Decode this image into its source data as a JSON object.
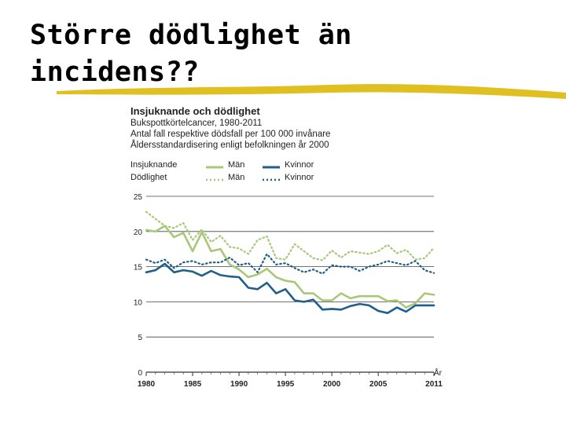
{
  "slide": {
    "title_line1": "Större dödlighet än",
    "title_line2": "incidens??",
    "underline_color": "#e0c020"
  },
  "chart_data": {
    "type": "line",
    "title": "Insjuknande och dödlighet",
    "subtitle": "Bukspottkörtelcancer, 1980-2011",
    "note1": "Antal fall respektive dödsfall per 100 000 invånare",
    "note2": "Åldersstandardisering enligt befolkningen år 2000",
    "legend": {
      "incidence_label": "Insjuknande",
      "mortality_label": "Dödlighet",
      "men": "Män",
      "women": "Kvinnor"
    },
    "xlabel": "År",
    "ylabel": "",
    "xlim": [
      1980,
      2011
    ],
    "ylim": [
      0,
      25
    ],
    "yticks": [
      0,
      5,
      10,
      15,
      20,
      25
    ],
    "xticks": [
      1980,
      1985,
      1990,
      1995,
      2000,
      2005,
      2011
    ],
    "grid": true,
    "x": [
      1980,
      1981,
      1982,
      1983,
      1984,
      1985,
      1986,
      1987,
      1988,
      1989,
      1990,
      1991,
      1992,
      1993,
      1994,
      1995,
      1996,
      1997,
      1998,
      1999,
      2000,
      2001,
      2002,
      2003,
      2004,
      2005,
      2006,
      2007,
      2008,
      2009,
      2010,
      2011
    ],
    "series": [
      {
        "name": "Män",
        "kind": "incidence",
        "color": "#a8c878",
        "dash": false,
        "values": [
          20.2,
          20.0,
          20.8,
          19.2,
          19.8,
          17.2,
          19.9,
          17.2,
          17.5,
          15.3,
          14.6,
          13.5,
          13.9,
          14.7,
          13.5,
          13.0,
          12.8,
          11.2,
          11.2,
          10.2,
          10.2,
          11.2,
          10.5,
          10.8,
          10.8,
          10.8,
          10.1,
          10.2,
          9.2,
          9.8,
          11.2,
          11.0
        ]
      },
      {
        "name": "Kvinnor",
        "kind": "incidence",
        "color": "#1f5f8b",
        "dash": false,
        "values": [
          14.2,
          14.5,
          15.4,
          14.2,
          14.5,
          14.3,
          13.7,
          14.4,
          13.8,
          13.6,
          13.5,
          12.0,
          11.8,
          12.7,
          11.2,
          11.8,
          10.2,
          10.0,
          10.3,
          8.9,
          9.0,
          8.9,
          9.4,
          9.7,
          9.5,
          8.7,
          8.4,
          9.2,
          8.6,
          9.5,
          9.5,
          9.5
        ]
      },
      {
        "name": "Män",
        "kind": "mortality",
        "color": "#a8c878",
        "dash": true,
        "values": [
          22.8,
          21.8,
          20.8,
          20.5,
          21.2,
          18.8,
          20.3,
          18.5,
          19.4,
          17.8,
          17.6,
          16.8,
          18.8,
          19.3,
          16.2,
          16.0,
          18.2,
          17.2,
          16.2,
          15.9,
          17.3,
          16.3,
          17.2,
          17.0,
          16.8,
          17.2,
          18.1,
          16.9,
          17.4,
          16.0,
          16.2,
          17.7
        ]
      },
      {
        "name": "Kvinnor",
        "kind": "mortality",
        "color": "#1f5f8b",
        "dash": true,
        "values": [
          16.0,
          15.5,
          16.0,
          14.8,
          15.6,
          15.8,
          15.3,
          15.6,
          15.6,
          16.3,
          15.2,
          15.5,
          14.2,
          16.8,
          15.3,
          15.5,
          14.8,
          14.2,
          14.6,
          14.0,
          15.2,
          15.0,
          15.0,
          14.4,
          15.0,
          15.3,
          15.8,
          15.5,
          15.2,
          15.8,
          14.5,
          14.1
        ]
      }
    ]
  }
}
